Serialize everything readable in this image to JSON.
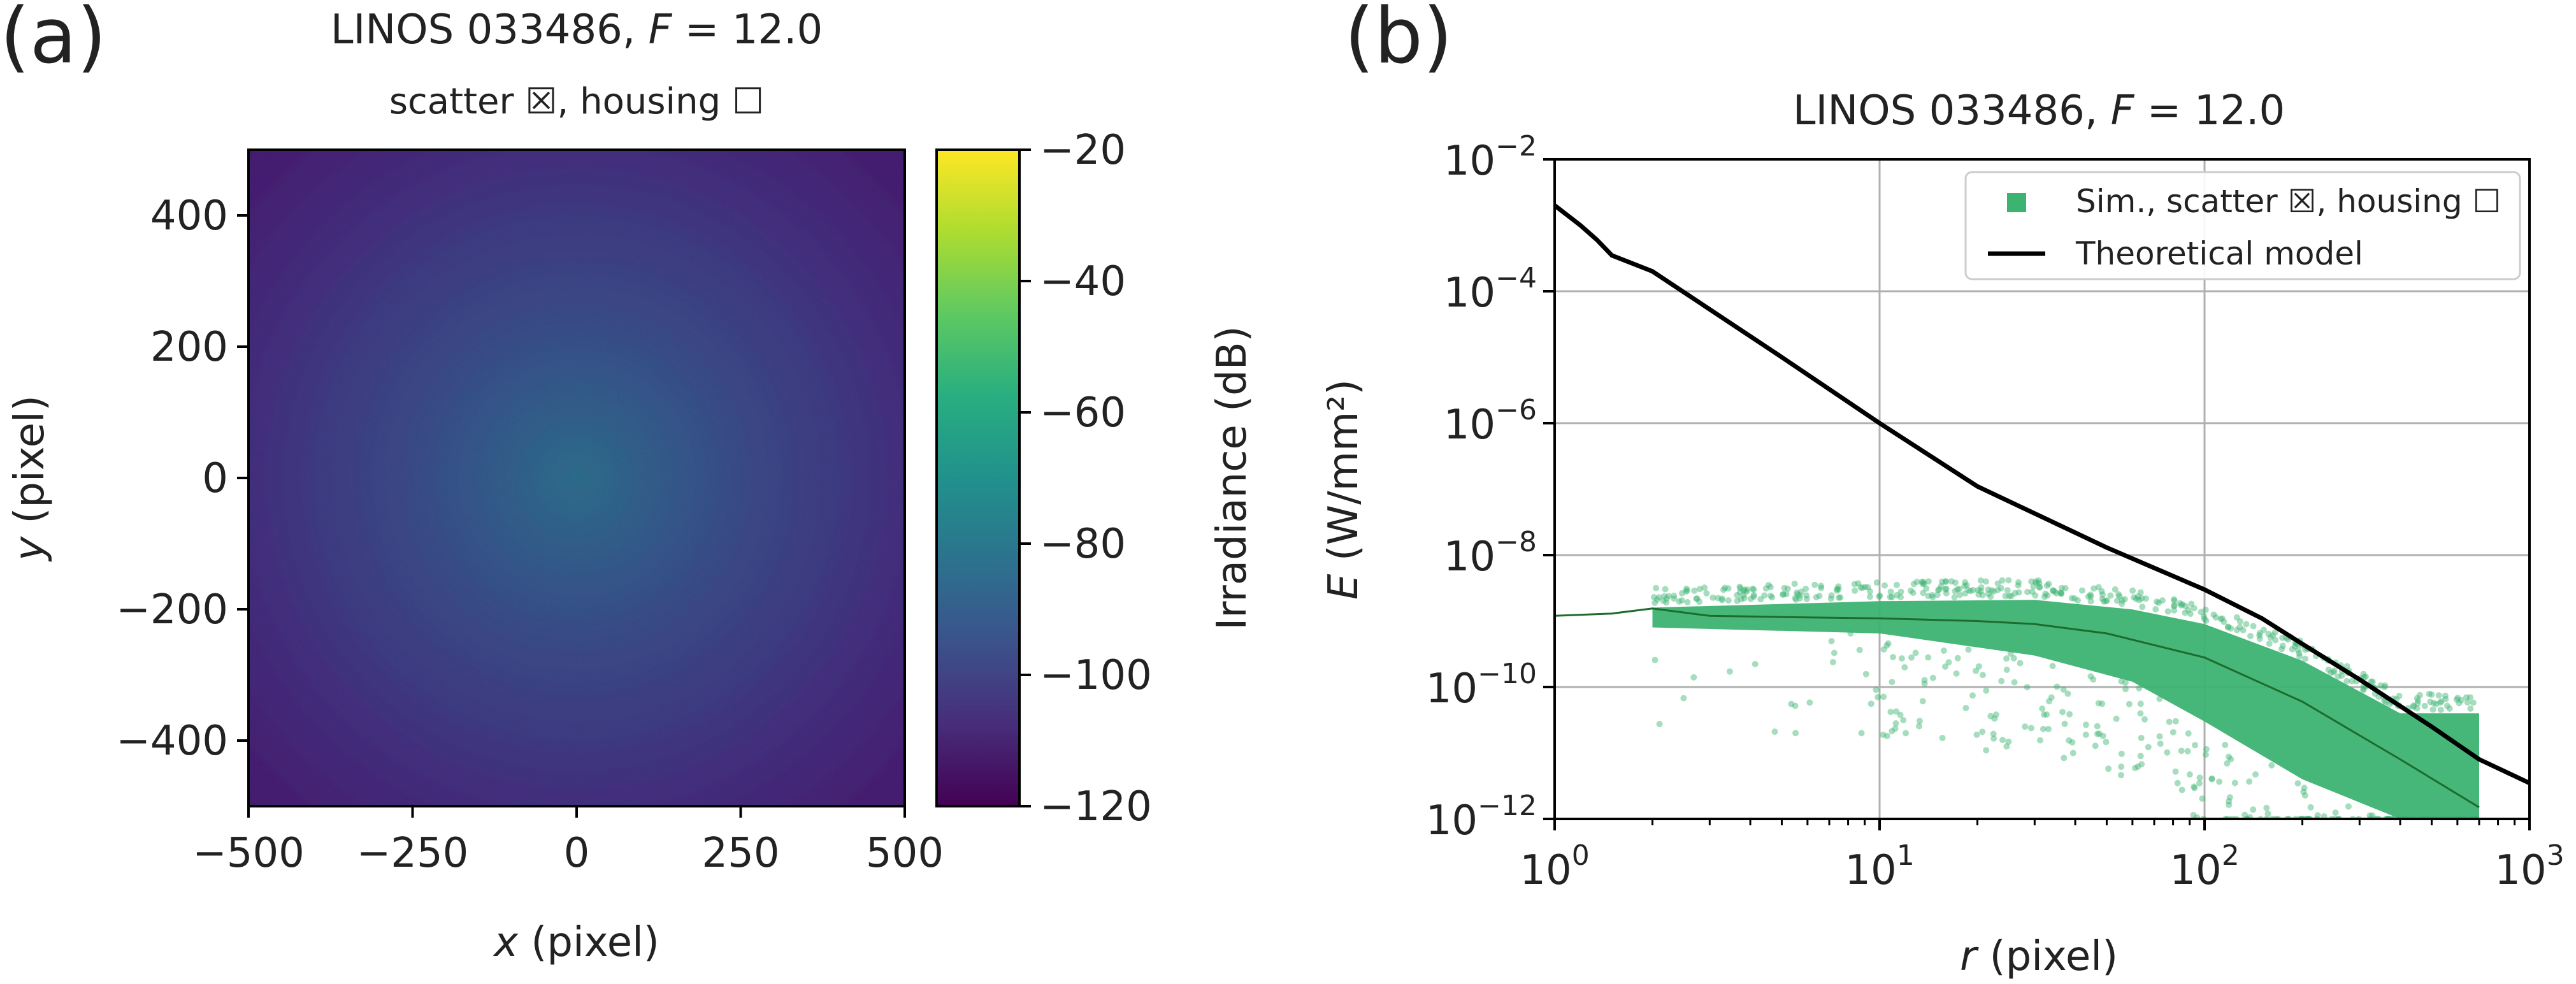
{
  "chart_data": [
    {
      "type": "heatmap",
      "panel_label": "(a)",
      "title": "LINOS 033486, F = 12.0",
      "title_parts": {
        "pre": "LINOS 033486, ",
        "italic": "F",
        "post": " = 12.0"
      },
      "subtitle": "scatter ☒, housing ☐",
      "xlabel_italic": "x",
      "xlabel_rest": " (pixel)",
      "ylabel_italic": "y",
      "ylabel_rest": " (pixel)",
      "xlim": [
        -500,
        500
      ],
      "ylim": [
        -500,
        500
      ],
      "xticks": [
        -500,
        -250,
        0,
        250,
        500
      ],
      "xtick_labels": [
        "−500",
        "−250",
        "0",
        "250",
        "500"
      ],
      "yticks": [
        400,
        200,
        0,
        -200,
        -400
      ],
      "ytick_labels": [
        "400",
        "200",
        "0",
        "−200",
        "−400"
      ],
      "colorbar": {
        "label": "Irradiance (dB)",
        "range": [
          -120,
          -20
        ],
        "ticks": [
          -20,
          -40,
          -60,
          -80,
          -100,
          -120
        ],
        "tick_labels": [
          "−20",
          "−40",
          "−60",
          "−80",
          "−100",
          "−120"
        ],
        "colormap": "viridis"
      },
      "center_value_db": -85,
      "edge_value_db": -113
    },
    {
      "type": "scatter",
      "panel_label": "(b)",
      "title": "LINOS 033486, F = 12.0",
      "title_parts": {
        "pre": "LINOS 033486, ",
        "italic": "F",
        "post": " = 12.0"
      },
      "xlabel_italic": "r",
      "xlabel_rest": " (pixel)",
      "ylabel_italic": "E",
      "ylabel_rest": " (W/mm²)",
      "xscale": "log",
      "yscale": "log",
      "xlim": [
        1,
        1000
      ],
      "ylim": [
        1e-12,
        0.01
      ],
      "xticks": [
        1,
        10,
        100,
        1000
      ],
      "xtick_labels": [
        {
          "base": "10",
          "exp": "0"
        },
        {
          "base": "10",
          "exp": "1"
        },
        {
          "base": "10",
          "exp": "2"
        },
        {
          "base": "10",
          "exp": "3"
        }
      ],
      "yticks": [
        0.01,
        0.0001,
        1e-06,
        1e-08,
        1e-10,
        1e-12
      ],
      "ytick_labels": [
        {
          "base": "10",
          "exp": "−2"
        },
        {
          "base": "10",
          "exp": "−4"
        },
        {
          "base": "10",
          "exp": "−6"
        },
        {
          "base": "10",
          "exp": "−8"
        },
        {
          "base": "10",
          "exp": "−10"
        },
        {
          "base": "10",
          "exp": "−12"
        }
      ],
      "grid": true,
      "legend_position": "top-right",
      "series": [
        {
          "name": "Sim., scatter ☒, housing ☐",
          "kind": "scatter-with-mean",
          "color": "#3cb371",
          "mean_line_color": "#1e6b2e",
          "mean": {
            "x": [
              1,
              1.5,
              2,
              3,
              5,
              10,
              20,
              30,
              50,
              100,
              200,
              400,
              700
            ],
            "y": [
              1.2e-09,
              1.3e-09,
              1.55e-09,
              1.2e-09,
              1.15e-09,
              1.1e-09,
              1e-09,
              9e-10,
              6.5e-10,
              2.8e-10,
              6e-11,
              8e-12,
              1.5e-12
            ]
          },
          "band_upper": {
            "x": [
              2,
              10,
              30,
              60,
              100,
              200,
              400,
              500,
              700
            ],
            "y": [
              1.6e-09,
              2e-09,
              2.1e-09,
              1.5e-09,
              9e-10,
              2.5e-10,
              4e-11,
              4e-11,
              4e-11
            ]
          },
          "band_lower": {
            "x": [
              2,
              10,
              30,
              60,
              100,
              200,
              400,
              700
            ],
            "y": [
              8e-10,
              6.5e-10,
              3e-10,
              1.2e-10,
              3e-11,
              4e-12,
              1e-12,
              1e-12
            ]
          }
        },
        {
          "name": "Theoretical model",
          "kind": "line",
          "color": "#000000",
          "x": [
            1,
            1.2,
            1.35,
            1.5,
            2,
            5,
            10,
            20,
            50,
            100,
            150,
            200,
            300,
            500,
            700,
            1000
          ],
          "y": [
            0.002,
            0.001,
            0.0006,
            0.00035,
            0.0002,
            1e-05,
            1e-06,
            1.1e-07,
            1.3e-08,
            3e-09,
            1.1e-09,
            4.5e-10,
            1.3e-10,
            2.5e-11,
            8e-12,
            3.5e-12
          ]
        }
      ]
    }
  ]
}
